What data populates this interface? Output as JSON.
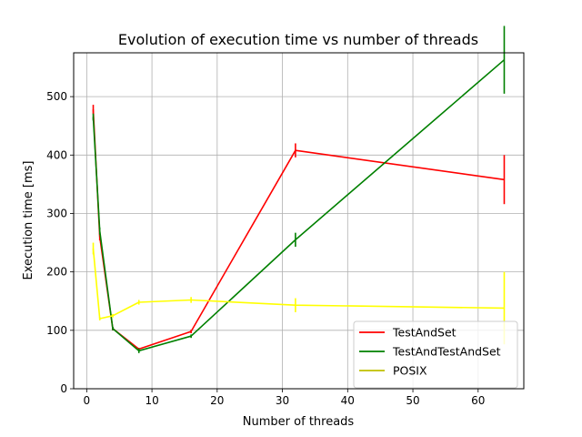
{
  "chart_data": {
    "type": "line",
    "title": "Evolution of execution time vs number of threads",
    "xlabel": "Number of threads",
    "ylabel": "Execution time [ms]",
    "xlim": [
      -2,
      67
    ],
    "ylim": [
      0,
      575
    ],
    "xticks": [
      0,
      10,
      20,
      30,
      40,
      50,
      60
    ],
    "yticks": [
      0,
      100,
      200,
      300,
      400,
      500
    ],
    "grid": true,
    "legend_position": "lower-right",
    "series": [
      {
        "name": "TestAndSet",
        "color": "#ff0000",
        "x": [
          1,
          2,
          4,
          8,
          16,
          32,
          64
        ],
        "y": [
          478,
          260,
          103,
          68,
          98,
          408,
          358
        ],
        "err": [
          8,
          6,
          3,
          2,
          3,
          12,
          42
        ]
      },
      {
        "name": "TestAndTestAndSet",
        "color": "#008000",
        "x": [
          1,
          2,
          4,
          8,
          16,
          32,
          64
        ],
        "y": [
          465,
          270,
          103,
          65,
          90,
          255,
          563
        ],
        "err": [
          6,
          6,
          3,
          4,
          3,
          12,
          58
        ]
      },
      {
        "name": "POSIX",
        "color": "#ffff00",
        "legend_color": "#bfbf00",
        "x": [
          1,
          2,
          4,
          8,
          16,
          32,
          64
        ],
        "y": [
          240,
          120,
          125,
          148,
          152,
          143,
          138
        ],
        "err": [
          10,
          3,
          3,
          4,
          5,
          12,
          62
        ]
      }
    ]
  }
}
